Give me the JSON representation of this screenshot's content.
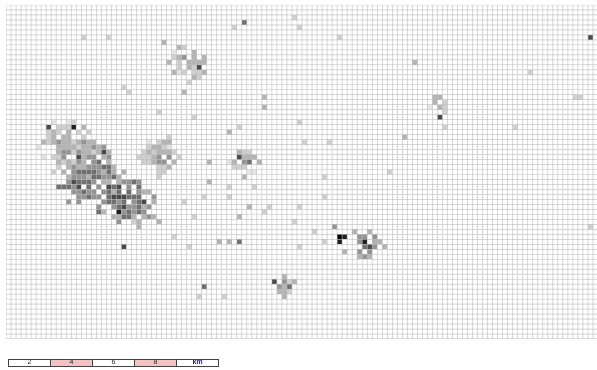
{
  "map": {
    "grid": {
      "cols": 118,
      "rows": 67,
      "line_color": "#bdbdbd",
      "background": "#ffffff"
    },
    "density_palette": [
      "#ffffff",
      "#e4e4e4",
      "#cfcfcf",
      "#b3b3b3",
      "#949494",
      "#6f6f6f",
      "#4a4a4a",
      "#1f1f1f",
      "#000000"
    ],
    "clusters": [
      {
        "cx": 12,
        "cy": 28,
        "r": 6,
        "level": 2
      },
      {
        "cx": 17,
        "cy": 33,
        "r": 6,
        "level": 3
      },
      {
        "cx": 22,
        "cy": 38,
        "r": 5,
        "level": 4
      },
      {
        "cx": 14,
        "cy": 36,
        "r": 4,
        "level": 4
      },
      {
        "cx": 26,
        "cy": 40,
        "r": 4,
        "level": 3
      },
      {
        "cx": 30,
        "cy": 30,
        "r": 4,
        "level": 2
      },
      {
        "cx": 36,
        "cy": 11,
        "r": 4,
        "level": 2
      },
      {
        "cx": 47,
        "cy": 31,
        "r": 3,
        "level": 2
      },
      {
        "cx": 72,
        "cy": 48,
        "r": 3,
        "level": 3
      },
      {
        "cx": 86,
        "cy": 20,
        "r": 2,
        "level": 2
      },
      {
        "cx": 55,
        "cy": 56,
        "r": 2,
        "level": 2
      }
    ],
    "hotspots": [
      {
        "c": 13,
        "r": 24,
        "level": 7
      },
      {
        "c": 14,
        "r": 30,
        "level": 6
      },
      {
        "c": 19,
        "r": 29,
        "level": 6
      },
      {
        "c": 20,
        "r": 36,
        "level": 6
      },
      {
        "c": 24,
        "r": 41,
        "level": 5
      },
      {
        "c": 27,
        "r": 39,
        "level": 6
      },
      {
        "c": 22,
        "r": 41,
        "level": 7
      },
      {
        "c": 8,
        "r": 24,
        "level": 6
      },
      {
        "c": 66,
        "r": 46,
        "level": 8
      },
      {
        "c": 67,
        "r": 46,
        "level": 7
      },
      {
        "c": 66,
        "r": 47,
        "level": 7
      },
      {
        "c": 71,
        "r": 47,
        "level": 7
      },
      {
        "c": 72,
        "r": 48,
        "level": 6
      },
      {
        "c": 38,
        "r": 12,
        "level": 6
      },
      {
        "c": 46,
        "r": 30,
        "level": 6
      },
      {
        "c": 48,
        "r": 31,
        "level": 5
      },
      {
        "c": 86,
        "r": 22,
        "level": 6
      },
      {
        "c": 116,
        "r": 6,
        "level": 6
      },
      {
        "c": 53,
        "r": 55,
        "level": 6
      },
      {
        "c": 56,
        "r": 56,
        "level": 5
      },
      {
        "c": 39,
        "r": 56,
        "level": 5
      },
      {
        "c": 46,
        "r": 47,
        "level": 5
      },
      {
        "c": 47,
        "r": 3,
        "level": 5
      },
      {
        "c": 23,
        "r": 48,
        "level": 6
      }
    ],
    "scatter": [
      {
        "c": 15,
        "r": 6,
        "level": 2
      },
      {
        "c": 20,
        "r": 6,
        "level": 2
      },
      {
        "c": 31,
        "r": 7,
        "level": 3
      },
      {
        "c": 45,
        "r": 4,
        "level": 2
      },
      {
        "c": 57,
        "r": 2,
        "level": 2
      },
      {
        "c": 58,
        "r": 4,
        "level": 2
      },
      {
        "c": 66,
        "r": 6,
        "level": 2
      },
      {
        "c": 81,
        "r": 11,
        "level": 3
      },
      {
        "c": 104,
        "r": 13,
        "level": 2
      },
      {
        "c": 113,
        "r": 18,
        "level": 2
      },
      {
        "c": 114,
        "r": 18,
        "level": 2
      },
      {
        "c": 23,
        "r": 16,
        "level": 2
      },
      {
        "c": 24,
        "r": 17,
        "level": 2
      },
      {
        "c": 35,
        "r": 17,
        "level": 3
      },
      {
        "c": 51,
        "r": 18,
        "level": 3
      },
      {
        "c": 51,
        "r": 20,
        "level": 3
      },
      {
        "c": 37,
        "r": 22,
        "level": 2
      },
      {
        "c": 46,
        "r": 24,
        "level": 2
      },
      {
        "c": 44,
        "r": 25,
        "level": 3
      },
      {
        "c": 58,
        "r": 23,
        "level": 2
      },
      {
        "c": 59,
        "r": 27,
        "level": 2
      },
      {
        "c": 64,
        "r": 27,
        "level": 2
      },
      {
        "c": 79,
        "r": 26,
        "level": 3
      },
      {
        "c": 101,
        "r": 24,
        "level": 2
      },
      {
        "c": 40,
        "r": 31,
        "level": 3
      },
      {
        "c": 40,
        "r": 35,
        "level": 3
      },
      {
        "c": 35,
        "r": 39,
        "level": 2
      },
      {
        "c": 39,
        "r": 38,
        "level": 2
      },
      {
        "c": 44,
        "r": 38,
        "level": 2
      },
      {
        "c": 48,
        "r": 40,
        "level": 3
      },
      {
        "c": 51,
        "r": 41,
        "level": 2
      },
      {
        "c": 52,
        "r": 40,
        "level": 2
      },
      {
        "c": 58,
        "r": 40,
        "level": 2
      },
      {
        "c": 63,
        "r": 38,
        "level": 2
      },
      {
        "c": 46,
        "r": 42,
        "level": 3
      },
      {
        "c": 37,
        "r": 42,
        "level": 2
      },
      {
        "c": 36,
        "r": 48,
        "level": 2
      },
      {
        "c": 33,
        "r": 46,
        "level": 2
      },
      {
        "c": 44,
        "r": 47,
        "level": 3
      },
      {
        "c": 42,
        "r": 47,
        "level": 3
      },
      {
        "c": 57,
        "r": 43,
        "level": 2
      },
      {
        "c": 61,
        "r": 45,
        "level": 2
      },
      {
        "c": 58,
        "r": 48,
        "level": 2
      },
      {
        "c": 63,
        "r": 47,
        "level": 2
      },
      {
        "c": 67,
        "r": 49,
        "level": 3
      },
      {
        "c": 116,
        "r": 44,
        "level": 2
      },
      {
        "c": 65,
        "r": 44,
        "level": 4
      },
      {
        "c": 38,
        "r": 58,
        "level": 2
      },
      {
        "c": 43,
        "r": 58,
        "level": 2
      },
      {
        "c": 55,
        "r": 58,
        "level": 3
      },
      {
        "c": 57,
        "r": 55,
        "level": 3
      },
      {
        "c": 54,
        "r": 57,
        "level": 3
      },
      {
        "c": 55,
        "r": 54,
        "level": 2
      },
      {
        "c": 76,
        "r": 33,
        "level": 2
      },
      {
        "c": 85,
        "r": 18,
        "level": 3
      },
      {
        "c": 87,
        "r": 24,
        "level": 2
      },
      {
        "c": 70,
        "r": 50,
        "level": 2
      },
      {
        "c": 69,
        "r": 45,
        "level": 3
      },
      {
        "c": 30,
        "r": 21,
        "level": 2
      },
      {
        "c": 32,
        "r": 26,
        "level": 2
      },
      {
        "c": 63,
        "r": 34,
        "level": 2
      },
      {
        "c": 47,
        "r": 34,
        "level": 3
      },
      {
        "c": 49,
        "r": 36,
        "level": 2
      },
      {
        "c": 28,
        "r": 42,
        "level": 4
      },
      {
        "c": 30,
        "r": 43,
        "level": 3
      },
      {
        "c": 44,
        "r": 36,
        "level": 2
      }
    ]
  },
  "scale_bar": {
    "segments": [
      {
        "label": "2",
        "fill": "#ffffff"
      },
      {
        "label": "4",
        "fill": "#f4c2c2"
      },
      {
        "label": "6",
        "fill": "#ffffff"
      },
      {
        "label": "8",
        "fill": "#f4c2c2"
      },
      {
        "label": "km",
        "fill": "#ffffff",
        "unit": true
      }
    ]
  }
}
